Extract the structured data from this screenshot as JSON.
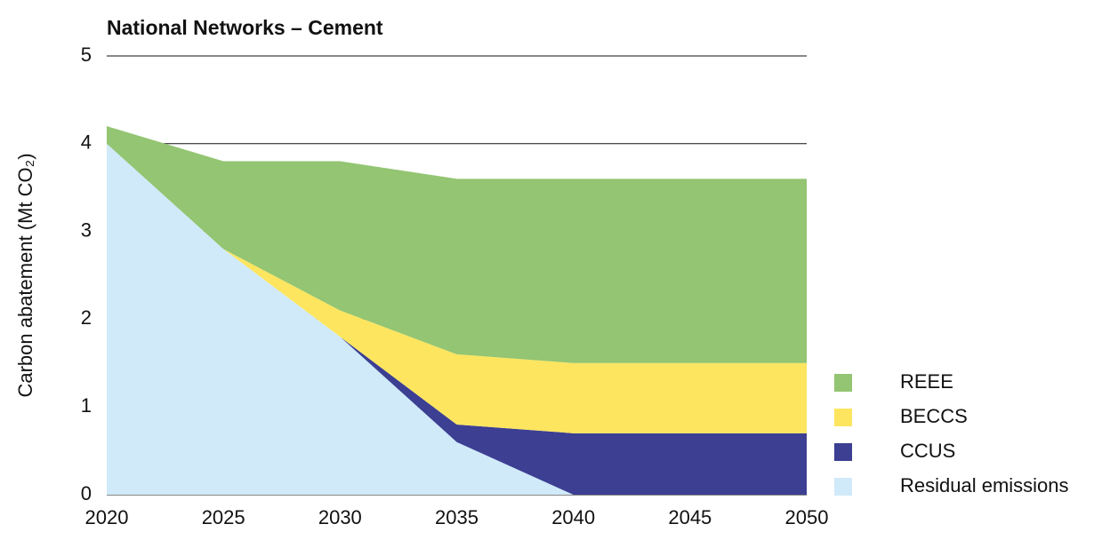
{
  "chart_data": {
    "type": "stacked_area",
    "title": "National Networks – Cement",
    "y_label": "Carbon abatement (Mt CO₂)",
    "x": [
      2020,
      2025,
      2030,
      2035,
      2040,
      2045,
      2050
    ],
    "xlim": [
      2020,
      2050
    ],
    "xticks": [
      2020,
      2025,
      2030,
      2035,
      2040,
      2045,
      2050
    ],
    "ylim": [
      0,
      5
    ],
    "yticks": [
      0,
      1,
      2,
      3,
      4,
      5
    ],
    "grid": true,
    "legend": "lower right",
    "series": [
      {
        "name": "Residual emissions",
        "color": "#d0eaf9",
        "values": [
          4.0,
          2.8,
          1.8,
          0.6,
          0,
          0,
          0
        ]
      },
      {
        "name": "CCUS",
        "color": "#3c3f92",
        "values": [
          0,
          0,
          0,
          0.2,
          0.7,
          0.7,
          0.7
        ]
      },
      {
        "name": "BECCS",
        "color": "#fde560",
        "values": [
          0,
          0,
          0.3,
          0.8,
          0.8,
          0.8,
          0.8
        ]
      },
      {
        "name": "REEE",
        "color": "#93c572",
        "values": [
          0.2,
          1.0,
          1.7,
          2.0,
          2.1,
          2.1,
          2.1
        ]
      }
    ]
  }
}
